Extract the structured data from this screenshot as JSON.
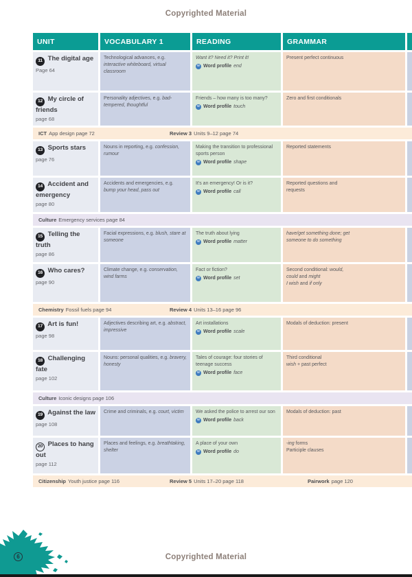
{
  "page": {
    "copyright_top": "Copyrighted Material",
    "copyright_bottom": "Copyrighted Material",
    "page_number": "6"
  },
  "colors": {
    "header_teal": "#0b9c94",
    "unit_cell": "#e8ebf2",
    "vocab_cell": "#cbd2e4",
    "reading_cell": "#d9e8d6",
    "grammar_cell": "#f4dbc8",
    "band_peach": "#fcebd9",
    "band_lavender": "#e9e4f1",
    "blob_teal": "#0f9a92",
    "word_profile_blue": "#3f7cbf"
  },
  "table": {
    "headers": [
      "UNIT",
      "VOCABULARY 1",
      "READING",
      "GRAMMAR"
    ],
    "word_profile_label": "Word profile",
    "rows": [
      {
        "type": "unit",
        "num": "11",
        "title": "The digital age",
        "page": "Page 64",
        "vocab": {
          "lead": "Technological advances, e.g.",
          "examples": "interactive whiteboard, virtual classroom"
        },
        "reading": {
          "title": "Want it? Need it? Print it!",
          "italic": true,
          "wp_word": "end"
        },
        "grammar": [
          [
            {
              "t": "Present perfect continuous",
              "i": false
            }
          ]
        ]
      },
      {
        "type": "unit",
        "num": "12",
        "title": "My circle of friends",
        "page": "page 68",
        "vocab": {
          "lead": "Personality adjectives, e.g.",
          "examples": "bad-tempered, thoughtful"
        },
        "reading": {
          "title": "Friends – how many is too many?",
          "italic": false,
          "wp_word": "touch"
        },
        "grammar": [
          [
            {
              "t": "Zero and first conditionals",
              "i": false
            }
          ]
        ]
      },
      {
        "type": "band",
        "style": "peach",
        "items": [
          {
            "bold": "ICT",
            "text": "App design page 72",
            "offset": 8
          },
          {
            "bold": "Review 3",
            "text": "Units 9–12 page 74",
            "offset": 199
          }
        ]
      },
      {
        "type": "unit",
        "num": "13",
        "title": "Sports stars",
        "page": "page 76",
        "vocab": {
          "lead": "Nouns in reporting, e.g.",
          "examples": "confession, rumour"
        },
        "reading": {
          "title": "Making the transition to professional sports person",
          "italic": false,
          "wp_word": "shape"
        },
        "grammar": [
          [
            {
              "t": "Reported statements",
              "i": false
            }
          ]
        ]
      },
      {
        "type": "unit",
        "num": "14",
        "title": "Accident and emergency",
        "page": "page 80",
        "vocab": {
          "lead": "Accidents and emergencies, e.g.",
          "examples": "bump your head, pass out"
        },
        "reading": {
          "title": "It's an emergency! Or is it?",
          "italic": false,
          "wp_word": "call"
        },
        "grammar": [
          [
            {
              "t": "Reported questions and",
              "i": false
            }
          ],
          [
            {
              "t": "requests",
              "i": false
            }
          ]
        ]
      },
      {
        "type": "band",
        "style": "lavender",
        "items": [
          {
            "bold": "Culture",
            "text": "Emergency services  page 84",
            "offset": 8
          }
        ]
      },
      {
        "type": "unit",
        "num": "15",
        "title": "Telling the truth",
        "page": "page 86",
        "vocab": {
          "lead": "Facial expressions, e.g.",
          "examples": "blush, stare at someone"
        },
        "reading": {
          "title": "The truth about lying",
          "italic": false,
          "wp_word": "matter"
        },
        "grammar": [
          [
            {
              "t": "have/get something done; get",
              "i": true
            }
          ],
          [
            {
              "t": "someone to do something",
              "i": true
            }
          ]
        ]
      },
      {
        "type": "unit",
        "num": "16",
        "title": "Who cares?",
        "page": "page 90",
        "vocab": {
          "lead": "Climate change, e.g.",
          "examples": "conservation, wind farms"
        },
        "reading": {
          "title": "Fact or fiction?",
          "italic": false,
          "wp_word": "set"
        },
        "grammar": [
          [
            {
              "t": "Second conditional: ",
              "i": false
            },
            {
              "t": "would,",
              "i": true
            }
          ],
          [
            {
              "t": "could",
              "i": true
            },
            {
              "t": " and ",
              "i": false
            },
            {
              "t": "might",
              "i": true
            }
          ],
          [
            {
              "t": "I wish",
              "i": true
            },
            {
              "t": " and ",
              "i": false
            },
            {
              "t": "if only",
              "i": true
            }
          ]
        ]
      },
      {
        "type": "band",
        "style": "peach",
        "items": [
          {
            "bold": "Chemistry",
            "text": "Fossil fuels page 94",
            "offset": 8
          },
          {
            "bold": "Review 4",
            "text": "Units 13–16 page 96",
            "offset": 199
          }
        ]
      },
      {
        "type": "unit",
        "num": "17",
        "title": "Art is fun!",
        "page": "page 98",
        "vocab": {
          "lead": "Adjectives describing art, e.g.",
          "examples": "abstract, impressive"
        },
        "reading": {
          "title": "Art installations",
          "italic": false,
          "wp_word": "scale"
        },
        "grammar": [
          [
            {
              "t": "Modals of deduction: present",
              "i": false
            }
          ]
        ]
      },
      {
        "type": "unit",
        "num": "18",
        "title": "Challenging fate",
        "page": "page 102",
        "vocab": {
          "lead": "Nouns: personal qualities, e.g.",
          "examples": "bravery, honesty"
        },
        "reading": {
          "title": "Tales of courage: four stories of teenage success",
          "italic": false,
          "wp_word": "face"
        },
        "grammar": [
          [
            {
              "t": "Third conditional",
              "i": false
            }
          ],
          [
            {
              "t": "wish",
              "i": true
            },
            {
              "t": " + past perfect",
              "i": false
            }
          ]
        ]
      },
      {
        "type": "band",
        "style": "lavender",
        "items": [
          {
            "bold": "Culture",
            "text": "Iconic designs page 106",
            "offset": 8
          }
        ]
      },
      {
        "type": "unit",
        "num": "19",
        "title": "Against the law",
        "page": "page 108",
        "vocab": {
          "lead": "Crime and criminals, e.g.",
          "examples": "court, victim"
        },
        "reading": {
          "title": "We asked the police to arrest our son",
          "italic": false,
          "wp_word": "back"
        },
        "grammar": [
          [
            {
              "t": "Modals of deduction: past",
              "i": false
            }
          ]
        ]
      },
      {
        "type": "unit",
        "num": "20",
        "badge_style": "outline",
        "title": "Places to hang out",
        "page": "page 112",
        "vocab": {
          "lead": "Places and feelings, e.g.",
          "examples": "breathtaking, shelter"
        },
        "reading": {
          "title": "A place of your own",
          "italic": false,
          "wp_word": "do"
        },
        "grammar": [
          [
            {
              "t": "-ing",
              "i": true
            },
            {
              "t": " forms",
              "i": false
            }
          ],
          [
            {
              "t": "Participle clauses",
              "i": false
            }
          ]
        ]
      },
      {
        "type": "band",
        "style": "peach",
        "items": [
          {
            "bold": "Citizenship",
            "text": "Youth justice page 116",
            "offset": 8
          },
          {
            "bold": "Review 5",
            "text": "Units 17–20 page 118",
            "offset": 199
          },
          {
            "bold": "Pairwork",
            "text": "page 120",
            "offset": 400
          }
        ]
      }
    ]
  }
}
